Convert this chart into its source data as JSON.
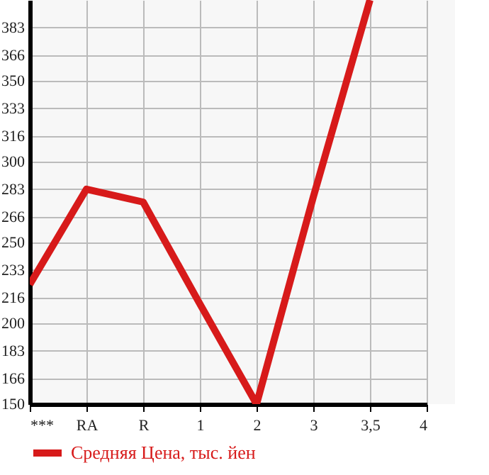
{
  "chart_data": {
    "type": "line",
    "categories": [
      "***",
      "RA",
      "R",
      "1",
      "2",
      "3",
      "3,5",
      "4"
    ],
    "series": [
      {
        "name": "Средняя Цена, тыс. йен",
        "color": "#d71a1a",
        "values": [
          224,
          283,
          275,
          212,
          150,
          278,
          400,
          null
        ]
      }
    ],
    "ylim": [
      150,
      400
    ],
    "yticks": [
      150,
      166,
      183,
      200,
      216,
      233,
      250,
      266,
      283,
      300,
      316,
      333,
      350,
      366,
      383
    ],
    "grid": true,
    "legend": "bottom",
    "marker": "none",
    "line_style": "solid"
  }
}
